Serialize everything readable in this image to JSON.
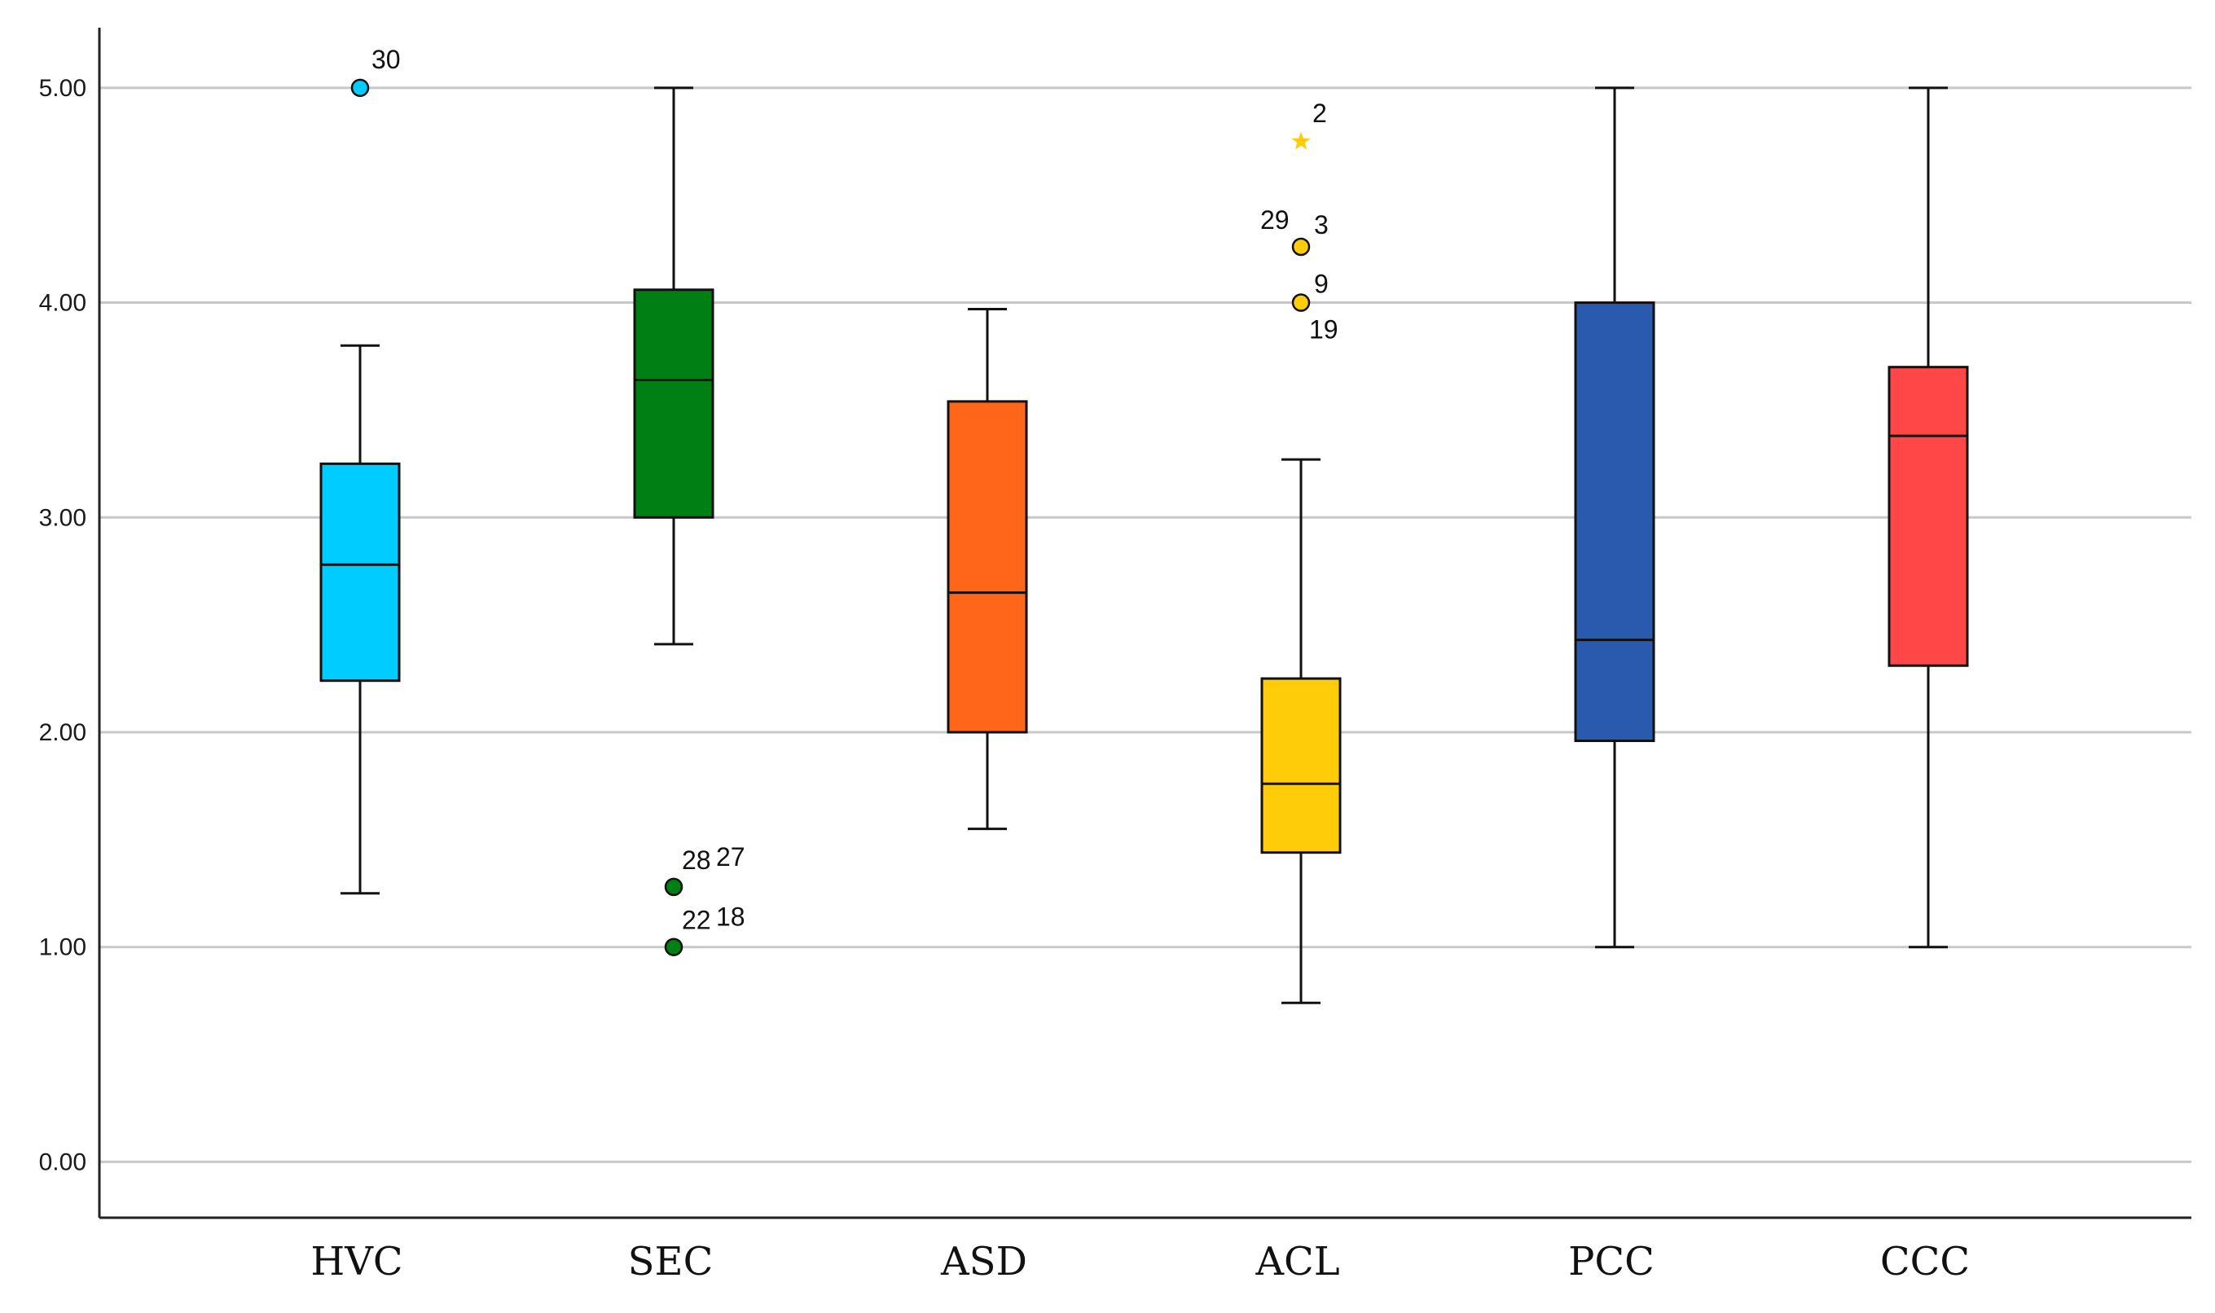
{
  "chart_data": {
    "type": "boxplot",
    "title": "",
    "xlabel": "",
    "ylabel": "",
    "ylim": [
      -0.26,
      5.28
    ],
    "yticks": [
      0,
      1,
      2,
      3,
      4,
      5
    ],
    "ytick_labels": [
      "0.00",
      "1.00",
      "2.00",
      "3.00",
      "4.00",
      "5.00"
    ],
    "grid": true,
    "categories": [
      "HVC",
      "SEC",
      "ASD",
      "ACL",
      "PCC",
      "CCC"
    ],
    "series": [
      {
        "name": "HVC",
        "color": "#00CCFF",
        "whisker_low": 1.25,
        "q1": 2.24,
        "median": 2.78,
        "q3": 3.25,
        "whisker_high": 3.8,
        "outliers": [
          {
            "value": 5.0,
            "kind": "circle",
            "labels": [
              "30"
            ]
          }
        ]
      },
      {
        "name": "SEC",
        "color": "#008014",
        "whisker_low": 2.41,
        "q1": 3.0,
        "median": 3.64,
        "q3": 4.06,
        "whisker_high": 5.0,
        "outliers": [
          {
            "value": 1.28,
            "kind": "circle",
            "labels": [
              "28",
              "27"
            ]
          },
          {
            "value": 1.0,
            "kind": "circle",
            "labels": [
              "22",
              "18"
            ]
          }
        ]
      },
      {
        "name": "ASD",
        "color": "#FF6619",
        "whisker_low": 1.55,
        "q1": 2.0,
        "median": 2.65,
        "q3": 3.54,
        "whisker_high": 3.97,
        "outliers": []
      },
      {
        "name": "ACL",
        "color": "#FFCC0A",
        "whisker_low": 0.74,
        "q1": 1.44,
        "median": 1.76,
        "q3": 2.25,
        "whisker_high": 3.27,
        "outliers": [
          {
            "value": 4.75,
            "kind": "star",
            "labels": [
              "2"
            ]
          },
          {
            "value": 4.26,
            "kind": "circle",
            "labels": [
              "29",
              "3"
            ]
          },
          {
            "value": 4.0,
            "kind": "circle",
            "labels": [
              "9",
              "19"
            ]
          }
        ]
      },
      {
        "name": "PCC",
        "color": "#2A5AAD",
        "whisker_low": 1.0,
        "q1": 1.96,
        "median": 2.43,
        "q3": 4.0,
        "whisker_high": 5.0,
        "outliers": []
      },
      {
        "name": "CCC",
        "color": "#FF4747",
        "whisker_low": 1.0,
        "q1": 2.31,
        "median": 3.38,
        "q3": 3.7,
        "whisker_high": 5.0,
        "outliers": []
      }
    ]
  }
}
